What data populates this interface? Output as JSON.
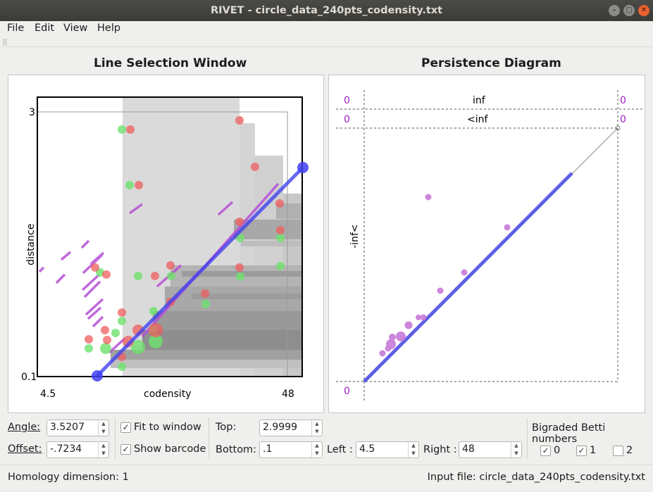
{
  "window": {
    "title": "RIVET - circle_data_240pts_codensity.txt"
  },
  "menu": {
    "file": "File",
    "edit": "Edit",
    "view": "View",
    "help": "Help"
  },
  "left_panel": {
    "title": "Line Selection Window",
    "y_top": "3",
    "y_bottom": "0.1",
    "x_left": "4.5",
    "x_right": "48",
    "xlabel": "codensity",
    "ylabel": "distance"
  },
  "right_panel": {
    "title": "Persistence Diagram",
    "inf_label": "inf",
    "ltinf_label": "<inf",
    "neg_inf_label": "-inf<",
    "count_top_left": "0",
    "count_top_right": "0",
    "count_mid_left": "0",
    "count_mid_right": "0",
    "count_bottom": "0"
  },
  "controls": {
    "angle_label": "Angle:",
    "angle_value": "3.5207",
    "offset_label": "Offset:",
    "offset_value": "-.7234",
    "fit_label": "Fit to window",
    "fit_checked": "✓",
    "barcode_label": "Show barcode",
    "barcode_checked": "✓",
    "top_label": "Top:",
    "top_value": "2.9999",
    "bottom_label": "Bottom:",
    "bottom_value": ".1",
    "left_label": "Left :",
    "left_value": "4.5",
    "right_label": "Right :",
    "right_value": "48",
    "betti_title": "Bigraded Betti numbers",
    "betti0_label": "0",
    "betti0_checked": "✓",
    "betti1_label": "1",
    "betti1_checked": "✓",
    "betti2_label": "2",
    "betti2_checked": ""
  },
  "status": {
    "homology": "Homology dimension: 1",
    "input_file": "Input file: circle_data_240pts_codensity.txt"
  },
  "colors": {
    "line": "#4a4ae8",
    "bar": "#b64fd6",
    "dot": "#c77ad9",
    "xi0": "#7be07b",
    "xi1": "#ef6e6e"
  }
}
